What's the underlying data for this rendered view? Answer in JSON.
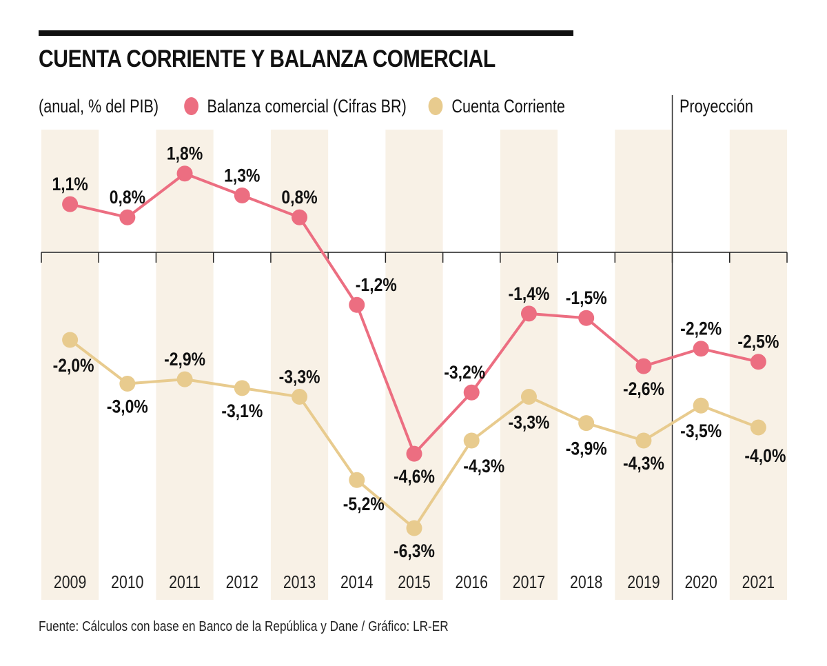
{
  "title": "CUENTA CORRIENTE Y BALANZA COMERCIAL",
  "subtitle": "(anual, % del PIB)",
  "legend": [
    {
      "label": "Balanza comercial (Cifras BR)",
      "color": "#EC6E81"
    },
    {
      "label": "Cuenta Corriente",
      "color": "#E8CB8E"
    }
  ],
  "projection_label": "Proyección",
  "source": "Fuente: Cálculos con base en  Banco de la República y Dane / Gráfico: LR-ER",
  "colors": {
    "column_shade": "#F8F1E6",
    "axis": "#555555",
    "divider": "#333333"
  },
  "chart_data": {
    "type": "line",
    "title": "CUENTA CORRIENTE Y BALANZA COMERCIAL",
    "subtitle": "(anual, % del PIB)",
    "xlabel": "",
    "ylabel": "% del PIB",
    "categories": [
      "2009",
      "2010",
      "2011",
      "2012",
      "2013",
      "2014",
      "2015",
      "2016",
      "2017",
      "2018",
      "2019",
      "2020",
      "2021"
    ],
    "projection_start": "2020",
    "ylim": [
      -7.0,
      2.5
    ],
    "grid": false,
    "legend_position": "top",
    "series": [
      {
        "name": "Balanza comercial (Cifras BR)",
        "color": "#EC6E81",
        "values": [
          1.1,
          0.8,
          1.8,
          1.3,
          0.8,
          -1.2,
          -4.6,
          -3.2,
          -1.4,
          -1.5,
          -2.6,
          -2.2,
          -2.5
        ],
        "labels": [
          "1,1%",
          "0,8%",
          "1,8%",
          "1,3%",
          "0,8%",
          "-1,2%",
          "-4,6%",
          "-3,2%",
          "-1,4%",
          "-1,5%",
          "-2,6%",
          "-2,2%",
          "-2,5%"
        ]
      },
      {
        "name": "Cuenta Corriente",
        "color": "#E8CB8E",
        "values": [
          -2.0,
          -3.0,
          -2.9,
          -3.1,
          -3.3,
          -5.2,
          -6.3,
          -4.3,
          -3.3,
          -3.9,
          -4.3,
          -3.5,
          -4.0
        ],
        "labels": [
          "-2,0%",
          "-3,0%",
          "-2,9%",
          "-3,1%",
          "-3,3%",
          "-5,2%",
          "-6,3%",
          "-4,3%",
          "-3,3%",
          "-3,9%",
          "-4,3%",
          "-3,5%",
          "-4,0%"
        ]
      }
    ]
  }
}
